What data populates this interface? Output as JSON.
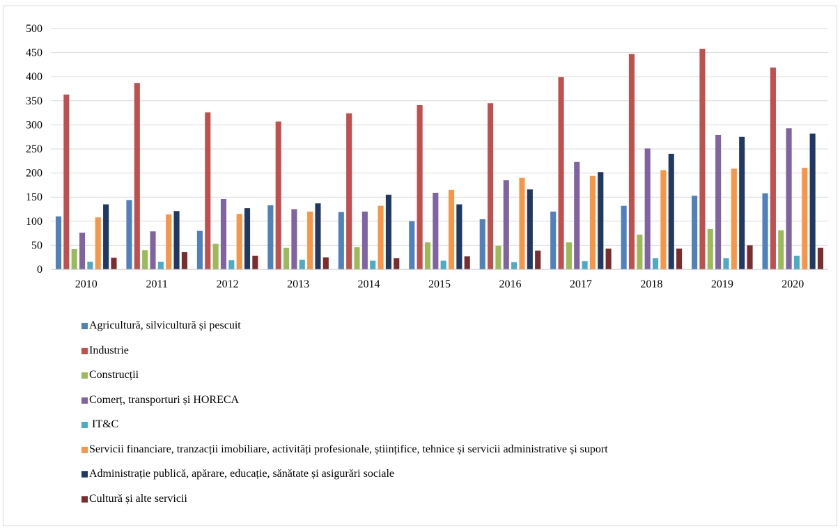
{
  "chart_data": {
    "type": "bar",
    "title": "",
    "xlabel": "",
    "ylabel": "",
    "ylim": [
      0,
      500
    ],
    "yticks": [
      0,
      50,
      100,
      150,
      200,
      250,
      300,
      350,
      400,
      450,
      500
    ],
    "grid": true,
    "legend_position": "bottom",
    "categories": [
      "2010",
      "2011",
      "2012",
      "2013",
      "2014",
      "2015",
      "2016",
      "2017",
      "2018",
      "2019",
      "2020"
    ],
    "series": [
      {
        "name": "Agricultură, silvicultură și pescuit",
        "color": "#4F81BD",
        "values": [
          110,
          144,
          80,
          133,
          119,
          100,
          104,
          120,
          132,
          153,
          158
        ]
      },
      {
        "name": "Industrie",
        "color": "#C0504D",
        "values": [
          363,
          387,
          326,
          307,
          324,
          341,
          345,
          399,
          447,
          458,
          419
        ]
      },
      {
        "name": "Construcții",
        "color": "#9BBB59",
        "values": [
          42,
          40,
          53,
          45,
          46,
          56,
          49,
          56,
          72,
          84,
          81
        ]
      },
      {
        "name": "Comerț, transporturi și HORECA",
        "color": "#8064A2",
        "values": [
          76,
          79,
          146,
          125,
          120,
          159,
          185,
          223,
          251,
          279,
          293
        ]
      },
      {
        "name": " IT&C",
        "color": "#4BACC6",
        "values": [
          16,
          16,
          19,
          20,
          18,
          18,
          15,
          17,
          23,
          23,
          28
        ]
      },
      {
        "name": "Servicii financiare, tranzacții imobiliare, activități profesionale, științifice, tehnice și servicii administrative și suport",
        "color": "#F79646",
        "values": [
          108,
          114,
          115,
          120,
          132,
          165,
          190,
          194,
          206,
          209,
          211
        ]
      },
      {
        "name": "Administrație publică, apărare, educație, sănătate și asigurări sociale",
        "color": "#1F3864",
        "values": [
          135,
          121,
          127,
          137,
          155,
          135,
          166,
          202,
          240,
          275,
          282
        ]
      },
      {
        "name": "Cultură și alte servicii",
        "color": "#7B2C2C",
        "values": [
          24,
          36,
          28,
          25,
          23,
          27,
          39,
          43,
          43,
          50,
          45
        ]
      }
    ]
  }
}
